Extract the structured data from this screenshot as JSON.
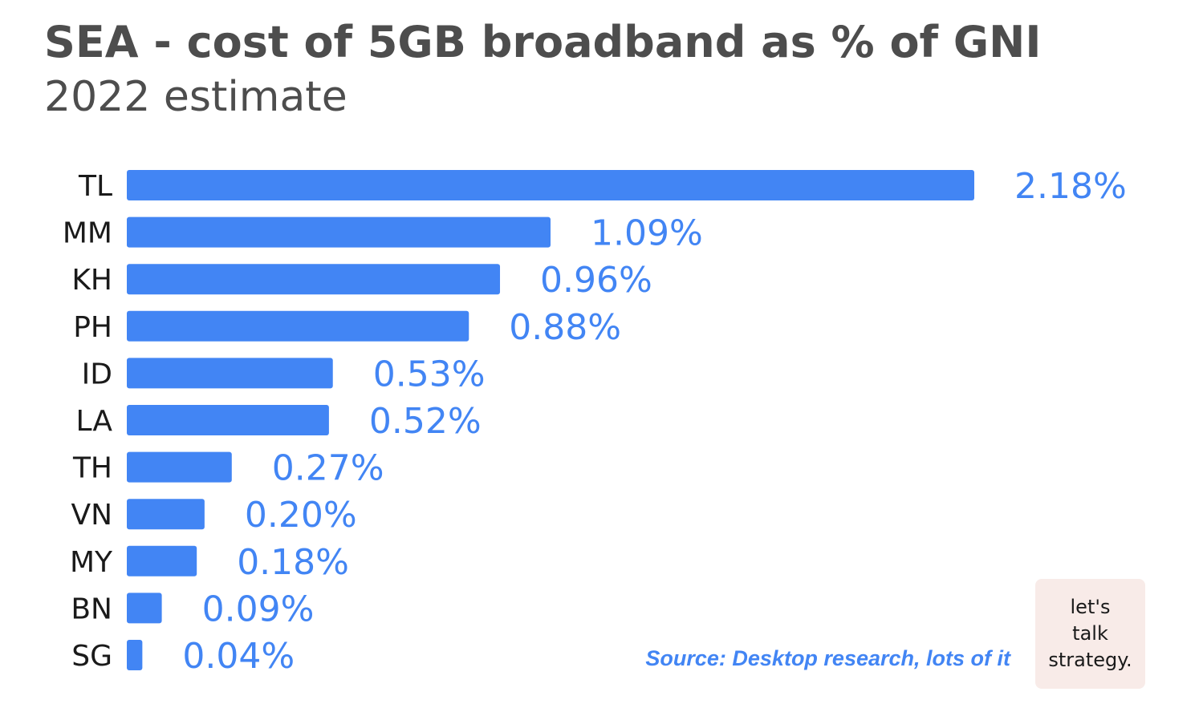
{
  "chart_data": {
    "type": "bar",
    "orientation": "horizontal",
    "title": "SEA - cost of 5GB broadband as % of GNI",
    "subtitle": "2022 estimate",
    "categories": [
      "TL",
      "MM",
      "KH",
      "PH",
      "ID",
      "LA",
      "TH",
      "VN",
      "MY",
      "BN",
      "SG"
    ],
    "values": [
      2.18,
      1.09,
      0.96,
      0.88,
      0.53,
      0.52,
      0.27,
      0.2,
      0.18,
      0.09,
      0.04
    ],
    "value_labels": [
      "2.18%",
      "1.09%",
      "0.96%",
      "0.88%",
      "0.53%",
      "0.52%",
      "0.27%",
      "0.20%",
      "0.18%",
      "0.09%",
      "0.04%"
    ],
    "xlim": [
      0,
      2.18
    ],
    "grid": false,
    "legend": "none",
    "bar_color": "#4285f4",
    "value_label_color": "#4285f4"
  },
  "source": "Source: Desktop research, lots of it",
  "brand": {
    "lines": [
      "let's",
      "talk",
      "strategy."
    ],
    "background": "#f8ebe8"
  },
  "colors": {
    "title": "#4d4d4d",
    "accent": "#4285f4"
  }
}
